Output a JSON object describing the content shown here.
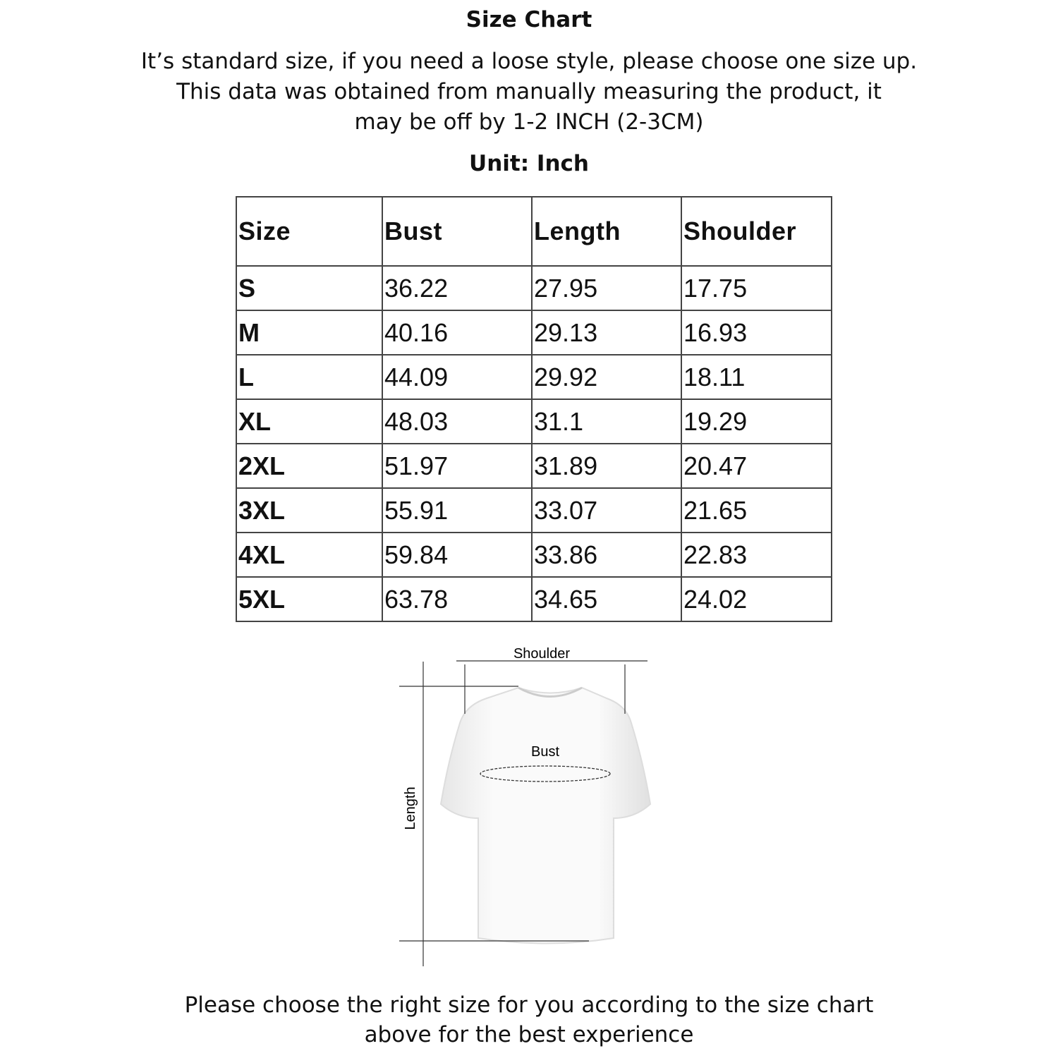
{
  "title": "Size Chart",
  "notes": [
    "It’s standard size, if you need a loose style, please choose one size up.",
    "This data was obtained from manually measuring the product, it",
    "may be off by 1-2 INCH (2-3CM)"
  ],
  "unit": "Unit: Inch",
  "table": {
    "headers": [
      "Size",
      "Bust",
      "Length",
      "Shoulder"
    ],
    "rows": [
      [
        "S",
        "36.22",
        "27.95",
        "17.75"
      ],
      [
        "M",
        "40.16",
        "29.13",
        "16.93"
      ],
      [
        "L",
        "44.09",
        "29.92",
        "18.11"
      ],
      [
        "XL",
        "48.03",
        "31.1",
        "19.29"
      ],
      [
        "2XL",
        "51.97",
        "31.89",
        "20.47"
      ],
      [
        "3XL",
        "55.91",
        "33.07",
        "21.65"
      ],
      [
        "4XL",
        "59.84",
        "33.86",
        "22.83"
      ],
      [
        "5XL",
        "63.78",
        "34.65",
        "24.02"
      ]
    ]
  },
  "diagram": {
    "shoulder_label": "Shoulder",
    "bust_label": "Bust",
    "length_label": "Length"
  },
  "footer": [
    "Please choose the right size for you according to the size chart",
    "above for the best experience"
  ]
}
